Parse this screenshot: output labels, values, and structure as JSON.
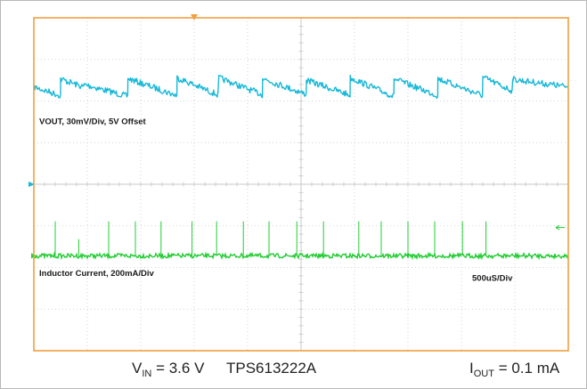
{
  "chart_data": {
    "type": "line",
    "channels": [
      {
        "name": "VOUT",
        "label": "VOUT, 30mV/Div, 5V Offset",
        "color": "#17b8d8",
        "shape": "sawtooth",
        "x_ms": [
          0,
          0.25,
          0.25,
          0.47,
          0.47,
          0.88,
          0.88,
          1.34,
          1.34,
          1.73,
          1.73,
          2.14,
          2.14,
          2.55,
          2.55,
          2.96,
          2.96,
          3.37,
          3.37,
          3.78,
          3.78,
          4.2,
          4.2,
          4.48,
          4.48,
          5.0
        ],
        "y_div_from_top": [
          1.66,
          1.87,
          1.47,
          1.67,
          1.6,
          1.89,
          1.46,
          1.87,
          1.44,
          1.86,
          1.44,
          1.85,
          1.46,
          1.84,
          1.5,
          1.86,
          1.44,
          1.89,
          1.47,
          1.87,
          1.46,
          1.87,
          1.43,
          1.76,
          1.48,
          1.66
        ]
      },
      {
        "name": "Inductor Current",
        "label": "Inductor Current, 200mA/Div",
        "color": "#22cc33",
        "baseline_div_from_top": 5.72,
        "spike_times_ms": [
          0.2,
          0.42,
          0.7,
          0.95,
          1.19,
          1.48,
          1.71,
          1.96,
          2.2,
          2.46,
          2.71,
          3.04,
          3.25,
          3.5,
          3.75,
          4.01,
          4.23
        ],
        "spike_height_div": [
          0.83,
          0.4,
          0.83,
          0.83,
          0.83,
          0.83,
          0.83,
          0.83,
          0.83,
          0.83,
          0.83,
          0.83,
          0.83,
          0.83,
          0.83,
          0.83,
          0.83
        ]
      }
    ],
    "timebase": "500uS/Div",
    "x_divisions": 10,
    "y_divisions": 8,
    "grid": true
  },
  "caption": {
    "vin_symbol": "V",
    "vin_sub": "IN",
    "vin_value": " = 3.6 V",
    "part": "TPS613222A",
    "iout_symbol": "I",
    "iout_sub": "OUT",
    "iout_value": " = 0.1 mA"
  },
  "colors": {
    "screen_border": "#f0a040",
    "grid": "#c8c8c8",
    "trigger_marker": "#f0a040",
    "ch1_marker": "#17b8d8",
    "ch2_marker": "#22cc33"
  }
}
